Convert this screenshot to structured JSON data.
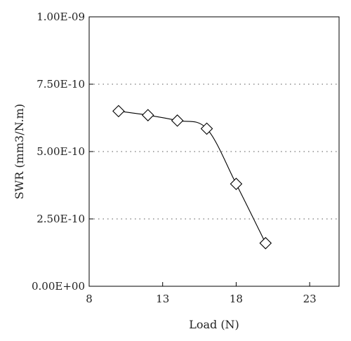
{
  "chart_data": {
    "type": "line",
    "title": "",
    "xlabel": "Load (N)",
    "ylabel": "SWR (mm3/N.m)",
    "xlim": [
      8,
      25
    ],
    "ylim": [
      0,
      1e-09
    ],
    "x_ticks": [
      8,
      13,
      18,
      23
    ],
    "x_tick_labels": [
      "8",
      "13",
      "18",
      "23"
    ],
    "y_ticks": [
      0,
      2.5e-10,
      5e-10,
      7.5e-10,
      1e-09
    ],
    "y_tick_labels": [
      "0.00E+00",
      "2.50E-10",
      "5.00E-10",
      "7.50E-10",
      "1.00E-09"
    ],
    "grid": "horizontal dotted",
    "marker": "diamond",
    "series": [
      {
        "x": [
          10,
          12,
          14,
          16,
          18,
          20
        ],
        "y": [
          6.5e-10,
          6.35e-10,
          6.15e-10,
          5.85e-10,
          3.8e-10,
          1.6e-10
        ]
      }
    ]
  }
}
